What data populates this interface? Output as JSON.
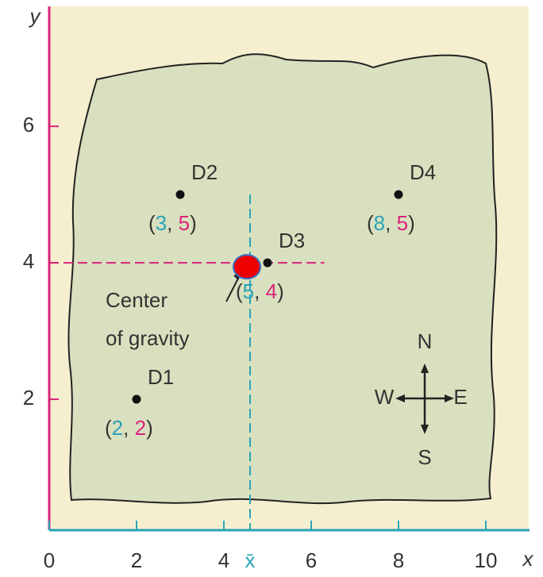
{
  "chart_data": {
    "type": "scatter",
    "point_labels": [
      "D1",
      "D2",
      "D3",
      "D4"
    ],
    "x": [
      2,
      3,
      5,
      8
    ],
    "y": [
      2,
      5,
      4,
      5
    ],
    "coordinate_punctuation": [
      "(",
      ", ",
      ")"
    ],
    "xlim": [
      0,
      11
    ],
    "ylim": [
      0,
      7.7
    ],
    "xticks": [
      0,
      2,
      4,
      6,
      8,
      10
    ],
    "yticks": [
      2,
      4,
      6
    ],
    "xlabel": "x",
    "ylabel": "y",
    "center": {
      "x": 4.6,
      "y": 4,
      "x_label": "x̄",
      "annotation": [
        "Center",
        "of gravity"
      ]
    },
    "compass": {
      "north": "N",
      "east": "E",
      "south": "S",
      "west": "W"
    }
  }
}
